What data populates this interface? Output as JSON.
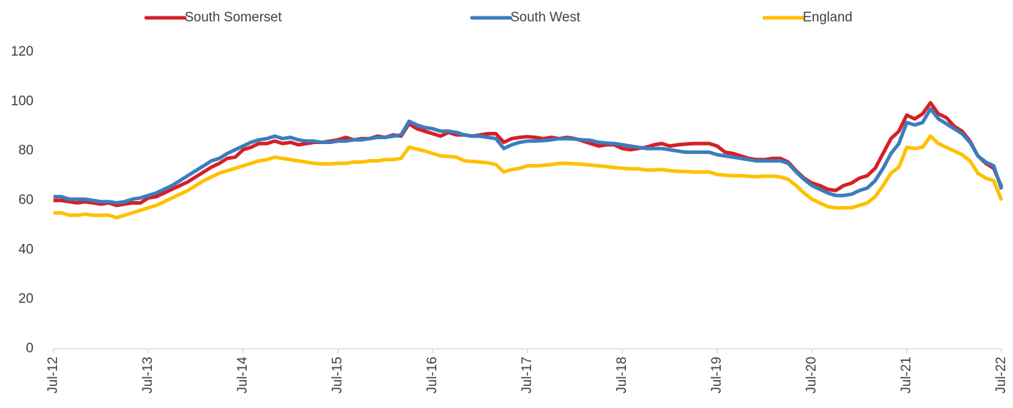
{
  "chart_data": {
    "type": "line",
    "categories": [
      "Jul-12",
      null,
      null,
      null,
      null,
      null,
      null,
      null,
      null,
      null,
      null,
      null,
      "Jul-13",
      null,
      null,
      null,
      null,
      null,
      null,
      null,
      null,
      null,
      null,
      null,
      "Jul-14",
      null,
      null,
      null,
      null,
      null,
      null,
      null,
      null,
      null,
      null,
      null,
      "Jul-15",
      null,
      null,
      null,
      null,
      null,
      null,
      null,
      null,
      null,
      null,
      null,
      "Jul-16",
      null,
      null,
      null,
      null,
      null,
      null,
      null,
      null,
      null,
      null,
      null,
      "Jul-17",
      null,
      null,
      null,
      null,
      null,
      null,
      null,
      null,
      null,
      null,
      null,
      "Jul-18",
      null,
      null,
      null,
      null,
      null,
      null,
      null,
      null,
      null,
      null,
      null,
      "Jul-19",
      null,
      null,
      null,
      null,
      null,
      null,
      null,
      null,
      null,
      null,
      null,
      "Jul-20",
      null,
      null,
      null,
      null,
      null,
      null,
      null,
      null,
      null,
      null,
      null,
      "Jul-21",
      null,
      null,
      null,
      null,
      null,
      null,
      null,
      null,
      null,
      null,
      null,
      "Jul-22"
    ],
    "series": [
      {
        "name": "South Somerset",
        "color": "#d42027",
        "values": [
          60,
          60,
          59.5,
          59,
          59.5,
          59,
          58.5,
          59,
          58,
          58.5,
          59,
          59,
          61,
          61.5,
          63,
          64.5,
          66,
          67.5,
          69.5,
          71.5,
          73.5,
          75,
          77,
          77.5,
          80.5,
          81.5,
          83,
          83,
          84,
          83,
          83.5,
          82.5,
          83,
          83.5,
          83.5,
          84,
          84.5,
          85.5,
          84.5,
          85,
          85,
          86,
          85.5,
          86.5,
          86,
          91,
          89,
          88,
          87,
          86,
          87.5,
          86.5,
          86.5,
          86,
          86.5,
          87,
          87,
          83.5,
          85,
          85.5,
          85.8,
          85.5,
          85,
          85.5,
          85,
          85.5,
          85,
          84,
          83,
          82,
          82.5,
          82.5,
          81,
          80.5,
          81,
          81.5,
          82.5,
          83,
          82,
          82.5,
          82.8,
          83,
          83,
          83,
          82,
          79.5,
          79,
          78,
          77,
          76.5,
          76.5,
          77,
          77,
          75.5,
          72,
          69,
          67,
          66,
          64.5,
          64,
          66,
          67,
          69,
          70,
          73,
          79,
          85,
          88,
          94.5,
          93,
          95,
          99.5,
          95,
          93.5,
          90,
          88,
          84,
          78,
          75,
          73,
          65.5
        ]
      },
      {
        "name": "South West",
        "color": "#3a7dbf",
        "values": [
          61.5,
          61.5,
          60.5,
          60.5,
          60.5,
          60,
          59.5,
          59.5,
          59,
          59.5,
          60.5,
          61,
          62,
          63,
          64.5,
          66,
          68,
          70,
          72,
          74,
          76,
          77,
          79,
          80.5,
          82,
          83.5,
          84.5,
          85,
          86,
          85,
          85.5,
          84.5,
          84,
          84,
          83.5,
          83.5,
          84,
          84,
          84.5,
          84.5,
          85,
          85.5,
          85.5,
          86,
          86.5,
          92,
          90.5,
          89.5,
          89,
          88,
          88,
          87.5,
          86.5,
          86,
          86,
          85.5,
          85,
          81,
          82.5,
          83.5,
          84,
          84,
          84.2,
          84.5,
          85,
          85,
          84.8,
          84.5,
          84.3,
          83.5,
          83.2,
          83,
          82.5,
          82,
          81.5,
          81,
          81,
          81,
          80.5,
          80,
          79.5,
          79.5,
          79.5,
          79.5,
          78.5,
          78,
          77.5,
          77,
          76.5,
          76,
          76,
          76,
          76,
          75,
          71.5,
          68.5,
          66,
          64.5,
          63,
          62,
          62,
          62.5,
          64,
          65,
          68,
          73,
          79,
          83,
          91.5,
          90.5,
          91.5,
          97,
          93,
          91,
          89,
          87,
          83.5,
          78,
          75.5,
          74,
          64.5
        ]
      },
      {
        "name": "England",
        "color": "#ffc000",
        "values": [
          55,
          55,
          54,
          54,
          54.5,
          54,
          54,
          54,
          53,
          54,
          55,
          56,
          57,
          58,
          59.5,
          61,
          62.5,
          64,
          66,
          68,
          69.5,
          71,
          72,
          73,
          74,
          75,
          76,
          76.5,
          77.5,
          77,
          76.5,
          76,
          75.5,
          75,
          74.8,
          74.8,
          75,
          75,
          75.5,
          75.5,
          76,
          76,
          76.5,
          76.5,
          77,
          81.5,
          80.8,
          80,
          79,
          78,
          77.8,
          77.5,
          76,
          75.8,
          75.5,
          75.2,
          74.5,
          71.5,
          72.5,
          73,
          74,
          74,
          74.2,
          74.5,
          75,
          75,
          74.8,
          74.6,
          74.3,
          74,
          73.7,
          73.3,
          73,
          72.8,
          72.8,
          72.3,
          72.3,
          72.5,
          72,
          71.8,
          71.7,
          71.5,
          71.5,
          71.5,
          70.5,
          70.2,
          70,
          70,
          69.8,
          69.6,
          69.8,
          69.8,
          69.5,
          68.5,
          66,
          63,
          60.5,
          59,
          57.5,
          57,
          57,
          57,
          58,
          59,
          61.5,
          66,
          71,
          73.5,
          81.5,
          81,
          81.5,
          86,
          83,
          81.5,
          80,
          78.5,
          76,
          71,
          69,
          68,
          60
        ]
      }
    ],
    "ylim": [
      0,
      120
    ],
    "yticks": [
      0,
      20,
      40,
      60,
      80,
      100,
      120
    ],
    "grid": false
  }
}
